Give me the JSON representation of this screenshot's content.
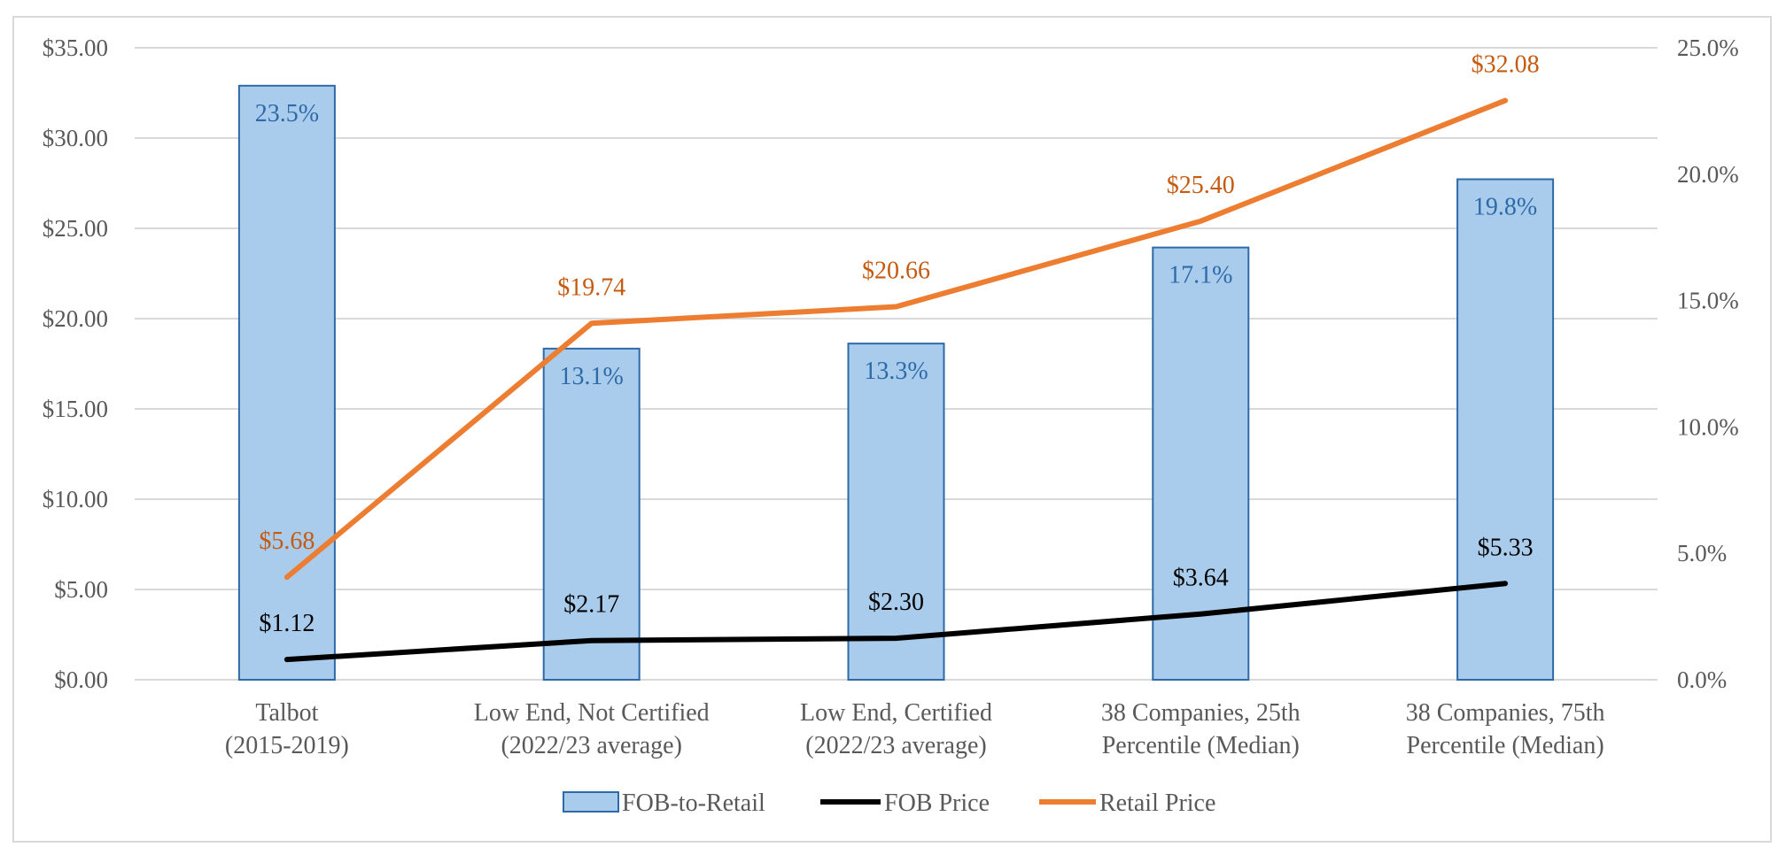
{
  "chart_data": {
    "type": "bar",
    "categories": [
      [
        "Talbot",
        "(2015-2019)"
      ],
      [
        "Low End, Not Certified",
        "(2022/23 average)"
      ],
      [
        "Low End, Certified",
        "(2022/23 average)"
      ],
      [
        "38 Companies, 25th",
        "Percentile (Median)"
      ],
      [
        "38 Companies, 75th",
        "Percentile (Median)"
      ]
    ],
    "y_left": {
      "ylim": [
        0,
        35
      ],
      "ticks": [
        0,
        5,
        10,
        15,
        20,
        25,
        30,
        35
      ],
      "tick_labels": [
        "$0.00",
        "$5.00",
        "$10.00",
        "$15.00",
        "$20.00",
        "$25.00",
        "$30.00",
        "$35.00"
      ]
    },
    "y_right": {
      "ylim": [
        0,
        0.25
      ],
      "ticks": [
        0,
        0.05,
        0.1,
        0.15,
        0.2,
        0.25
      ],
      "tick_labels": [
        "0.0%",
        "5.0%",
        "10.0%",
        "15.0%",
        "20.0%",
        "25.0%"
      ]
    },
    "series": [
      {
        "name": "FOB-to-Retail",
        "kind": "bar",
        "axis": "right",
        "values": [
          0.235,
          0.131,
          0.133,
          0.171,
          0.198
        ],
        "labels": [
          "23.5%",
          "13.1%",
          "13.3%",
          "17.1%",
          "19.8%"
        ],
        "color": "#a9ccec",
        "stroke": "#2e6aa8",
        "label_color": "#2e6aa8"
      },
      {
        "name": "FOB Price",
        "kind": "line",
        "axis": "left",
        "values": [
          1.12,
          2.17,
          2.3,
          3.64,
          5.33
        ],
        "labels": [
          "$1.12",
          "$2.17",
          "$2.30",
          "$3.64",
          "$5.33"
        ],
        "color": "#000000",
        "label_color": "#000000"
      },
      {
        "name": "Retail Price",
        "kind": "line",
        "axis": "left",
        "values": [
          5.68,
          19.74,
          20.66,
          25.4,
          32.08
        ],
        "labels": [
          "$5.68",
          "$19.74",
          "$20.66",
          "$25.40",
          "$32.08"
        ],
        "color": "#ed7d31",
        "label_color": "#c55a11"
      }
    ],
    "grid": true,
    "legend": "bottom"
  },
  "colors": {
    "grid": "#d9d9d9",
    "axis_text": "#595959",
    "frame": "#d9d9d9"
  }
}
